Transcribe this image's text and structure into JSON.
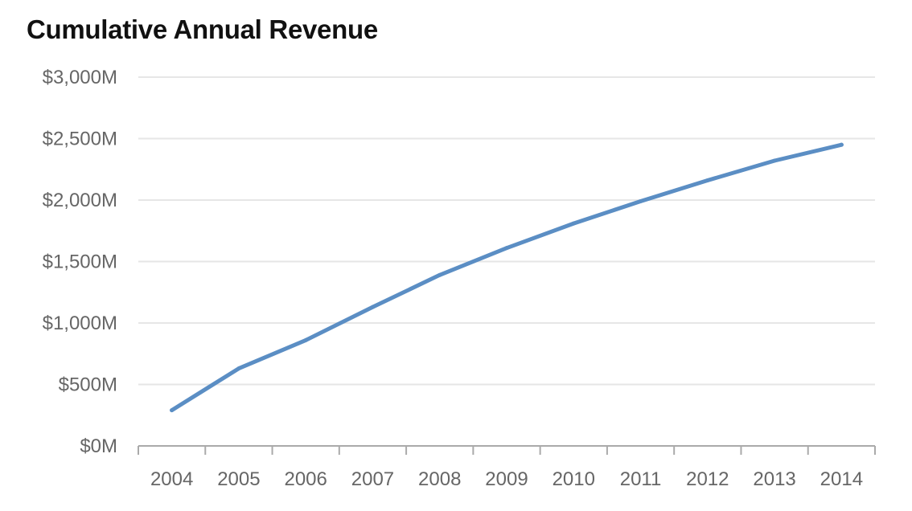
{
  "chart_data": {
    "type": "line",
    "title": "Cumulative Annual Revenue",
    "xlabel": "",
    "ylabel": "",
    "categories": [
      "2004",
      "2005",
      "2006",
      "2007",
      "2008",
      "2009",
      "2010",
      "2011",
      "2012",
      "2013",
      "2014"
    ],
    "series": [
      {
        "values": [
          290,
          630,
          860,
          1130,
          1390,
          1610,
          1810,
          1990,
          2160,
          2320,
          2450
        ],
        "color": "#5b8ec4"
      }
    ],
    "ylim": [
      0,
      3000
    ],
    "y_ticks": [
      0,
      500,
      1000,
      1500,
      2000,
      2500,
      3000
    ],
    "y_tick_labels": [
      "$0M",
      "$500M",
      "$1,000M",
      "$1,500M",
      "$2,000M",
      "$2,500M",
      "$3,000M"
    ],
    "grid": true,
    "gridline_color": "#e6e6e6",
    "axis_color": "#aaaaaa",
    "legend": "none"
  }
}
